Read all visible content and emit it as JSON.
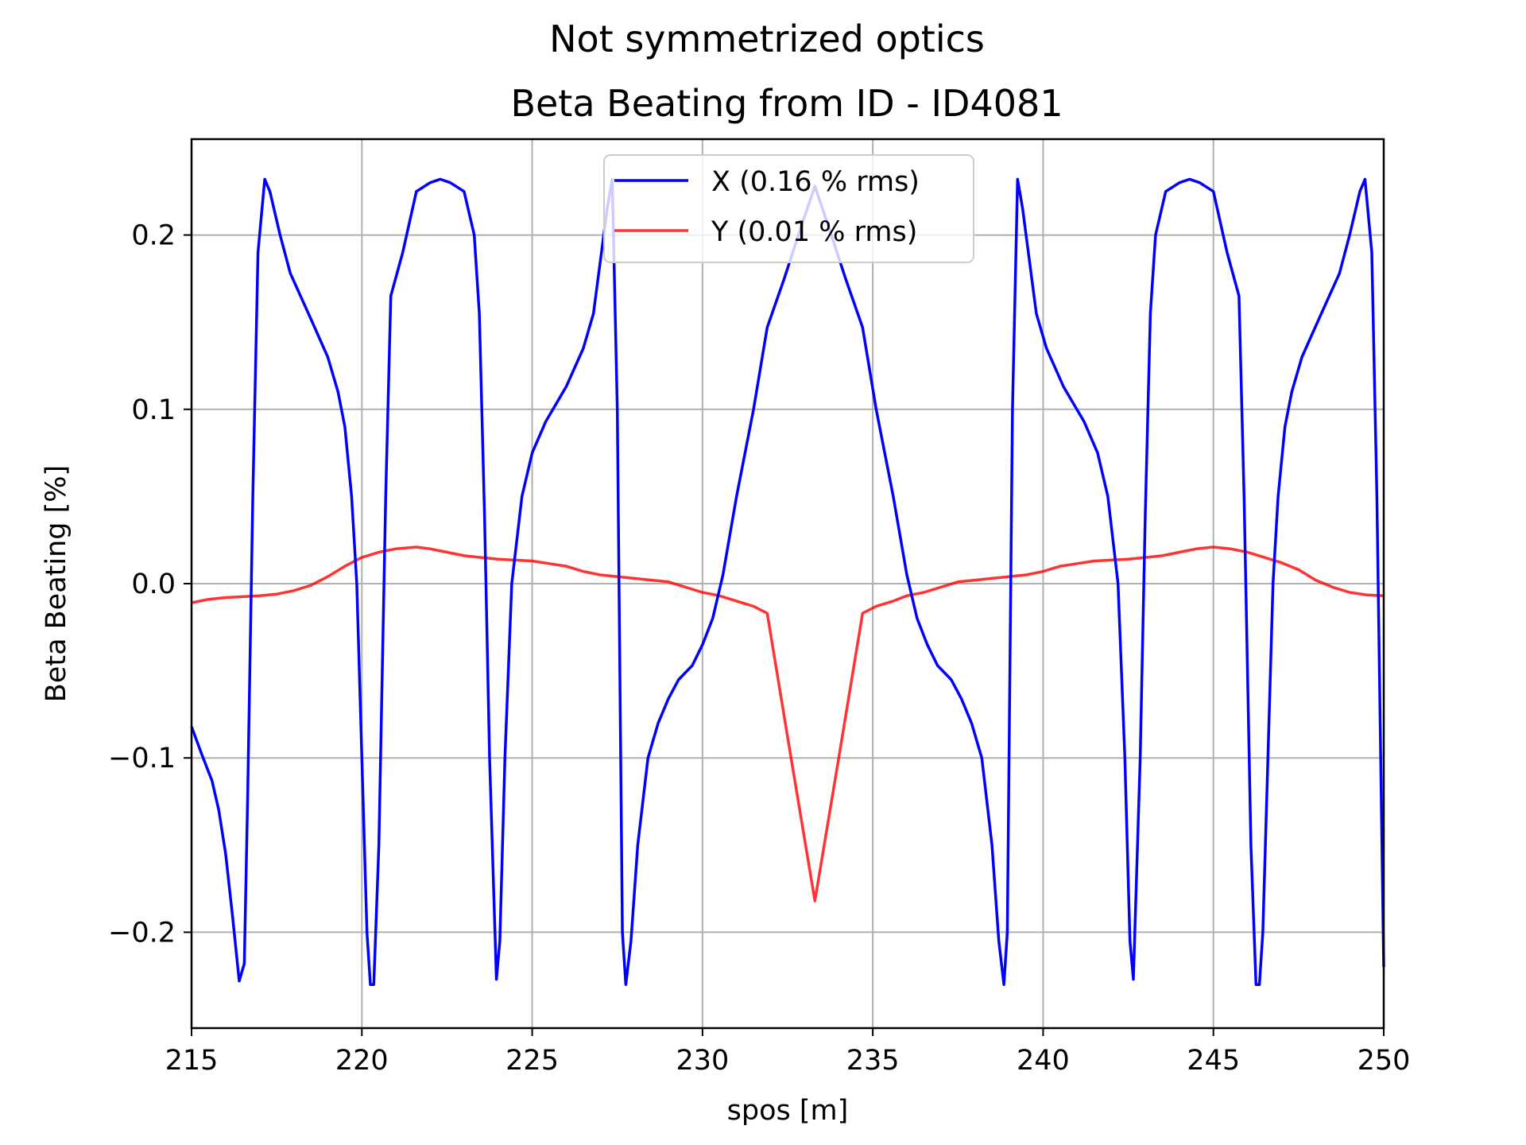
{
  "chart_data": {
    "type": "line",
    "suptitle": "Not symmetrized optics",
    "title": "Beta Beating from ID - ID4081",
    "xlabel": "spos [m]",
    "ylabel": "Beta Beating [%]",
    "xlim": [
      215,
      250
    ],
    "ylim": [
      -0.255,
      0.255
    ],
    "xticks": [
      215,
      220,
      225,
      230,
      235,
      240,
      245,
      250
    ],
    "xtick_labels": [
      "215",
      "220",
      "225",
      "230",
      "235",
      "240",
      "245",
      "250"
    ],
    "yticks": [
      -0.2,
      -0.1,
      0.0,
      0.1,
      0.2
    ],
    "ytick_labels": [
      "−0.2",
      "−0.1",
      "0.0",
      "0.1",
      "0.2"
    ],
    "grid": true,
    "legend_position": "top-center",
    "series": [
      {
        "name": "X (0.16 % rms)",
        "color": "#0000ff",
        "points": [
          [
            215.0,
            -0.082
          ],
          [
            215.3,
            -0.098
          ],
          [
            215.6,
            -0.113
          ],
          [
            215.8,
            -0.13
          ],
          [
            216.0,
            -0.155
          ],
          [
            216.2,
            -0.19
          ],
          [
            216.4,
            -0.228
          ],
          [
            216.55,
            -0.218
          ],
          [
            216.65,
            -0.12
          ],
          [
            216.8,
            0.05
          ],
          [
            216.95,
            0.19
          ],
          [
            217.15,
            0.232
          ],
          [
            217.3,
            0.225
          ],
          [
            217.6,
            0.2
          ],
          [
            217.9,
            0.178
          ],
          [
            218.5,
            0.152
          ],
          [
            219.0,
            0.13
          ],
          [
            219.3,
            0.11
          ],
          [
            219.5,
            0.09
          ],
          [
            219.7,
            0.05
          ],
          [
            219.85,
            0.0
          ],
          [
            220.0,
            -0.1
          ],
          [
            220.15,
            -0.2
          ],
          [
            220.25,
            -0.23
          ],
          [
            220.35,
            -0.23
          ],
          [
            220.5,
            -0.15
          ],
          [
            220.7,
            0.05
          ],
          [
            220.85,
            0.165
          ],
          [
            221.2,
            0.19
          ],
          [
            221.6,
            0.225
          ],
          [
            222.0,
            0.23
          ],
          [
            222.3,
            0.232
          ],
          [
            222.6,
            0.23
          ],
          [
            223.0,
            0.225
          ],
          [
            223.3,
            0.2
          ],
          [
            223.45,
            0.155
          ],
          [
            223.6,
            0.04
          ],
          [
            223.75,
            -0.1
          ],
          [
            223.95,
            -0.227
          ],
          [
            224.05,
            -0.205
          ],
          [
            224.2,
            -0.1
          ],
          [
            224.4,
            0.0
          ],
          [
            224.7,
            0.05
          ],
          [
            225.0,
            0.075
          ],
          [
            225.4,
            0.093
          ],
          [
            226.0,
            0.113
          ],
          [
            226.5,
            0.135
          ],
          [
            226.8,
            0.155
          ],
          [
            227.0,
            0.185
          ],
          [
            227.2,
            0.215
          ],
          [
            227.35,
            0.232
          ],
          [
            227.5,
            0.1
          ],
          [
            227.65,
            -0.2
          ],
          [
            227.75,
            -0.23
          ],
          [
            227.9,
            -0.205
          ],
          [
            228.1,
            -0.15
          ],
          [
            228.4,
            -0.1
          ],
          [
            228.7,
            -0.08
          ],
          [
            229.0,
            -0.066
          ],
          [
            229.3,
            -0.055
          ],
          [
            229.7,
            -0.047
          ],
          [
            230.0,
            -0.035
          ],
          [
            230.3,
            -0.02
          ],
          [
            230.6,
            0.005
          ],
          [
            231.0,
            0.05
          ],
          [
            231.5,
            0.1
          ],
          [
            231.9,
            0.147
          ],
          [
            232.4,
            0.175
          ],
          [
            232.9,
            0.205
          ],
          [
            233.3,
            0.228
          ],
          [
            233.7,
            0.205
          ],
          [
            234.2,
            0.175
          ],
          [
            234.7,
            0.147
          ],
          [
            235.1,
            0.1
          ],
          [
            235.6,
            0.05
          ],
          [
            236.0,
            0.005
          ],
          [
            236.3,
            -0.02
          ],
          [
            236.6,
            -0.035
          ],
          [
            236.9,
            -0.047
          ],
          [
            237.3,
            -0.055
          ],
          [
            237.6,
            -0.066
          ],
          [
            237.9,
            -0.08
          ],
          [
            238.2,
            -0.1
          ],
          [
            238.5,
            -0.15
          ],
          [
            238.7,
            -0.205
          ],
          [
            238.85,
            -0.23
          ],
          [
            238.95,
            -0.2
          ],
          [
            239.1,
            0.1
          ],
          [
            239.25,
            0.232
          ],
          [
            239.4,
            0.215
          ],
          [
            239.6,
            0.185
          ],
          [
            239.8,
            0.155
          ],
          [
            240.1,
            0.135
          ],
          [
            240.6,
            0.113
          ],
          [
            241.2,
            0.093
          ],
          [
            241.6,
            0.075
          ],
          [
            241.9,
            0.05
          ],
          [
            242.2,
            0.0
          ],
          [
            242.4,
            -0.1
          ],
          [
            242.55,
            -0.205
          ],
          [
            242.65,
            -0.227
          ],
          [
            242.85,
            -0.1
          ],
          [
            243.0,
            0.04
          ],
          [
            243.15,
            0.155
          ],
          [
            243.3,
            0.2
          ],
          [
            243.6,
            0.225
          ],
          [
            244.0,
            0.23
          ],
          [
            244.3,
            0.232
          ],
          [
            244.6,
            0.23
          ],
          [
            245.0,
            0.225
          ],
          [
            245.4,
            0.19
          ],
          [
            245.75,
            0.165
          ],
          [
            245.9,
            0.05
          ],
          [
            246.1,
            -0.15
          ],
          [
            246.25,
            -0.23
          ],
          [
            246.35,
            -0.23
          ],
          [
            246.45,
            -0.2
          ],
          [
            246.6,
            -0.1
          ],
          [
            246.75,
            0.0
          ],
          [
            246.9,
            0.05
          ],
          [
            247.1,
            0.09
          ],
          [
            247.3,
            0.11
          ],
          [
            247.6,
            0.13
          ],
          [
            248.1,
            0.152
          ],
          [
            248.7,
            0.178
          ],
          [
            249.0,
            0.2
          ],
          [
            249.3,
            0.225
          ],
          [
            249.45,
            0.232
          ],
          [
            249.65,
            0.19
          ],
          [
            249.8,
            0.05
          ],
          [
            250.0,
            -0.22
          ]
        ]
      },
      {
        "name": "Y (0.01 % rms)",
        "color": "#ff0000",
        "points": [
          [
            215.0,
            -0.011
          ],
          [
            215.5,
            -0.009
          ],
          [
            216.0,
            -0.008
          ],
          [
            216.5,
            -0.0075
          ],
          [
            217.0,
            -0.007
          ],
          [
            217.5,
            -0.006
          ],
          [
            218.0,
            -0.004
          ],
          [
            218.5,
            -0.001
          ],
          [
            219.0,
            0.004
          ],
          [
            219.5,
            0.01
          ],
          [
            220.0,
            0.015
          ],
          [
            220.5,
            0.018
          ],
          [
            221.0,
            0.02
          ],
          [
            221.6,
            0.021
          ],
          [
            222.0,
            0.02
          ],
          [
            222.5,
            0.018
          ],
          [
            223.0,
            0.016
          ],
          [
            223.5,
            0.015
          ],
          [
            224.0,
            0.014
          ],
          [
            224.5,
            0.0135
          ],
          [
            225.0,
            0.013
          ],
          [
            225.5,
            0.0115
          ],
          [
            226.0,
            0.01
          ],
          [
            226.5,
            0.007
          ],
          [
            227.0,
            0.005
          ],
          [
            227.5,
            0.004
          ],
          [
            228.0,
            0.003
          ],
          [
            228.5,
            0.002
          ],
          [
            229.0,
            0.001
          ],
          [
            229.5,
            -0.002
          ],
          [
            230.0,
            -0.005
          ],
          [
            230.5,
            -0.007
          ],
          [
            231.0,
            -0.01
          ],
          [
            231.5,
            -0.013
          ],
          [
            231.9,
            -0.017
          ],
          [
            232.6,
            -0.1
          ],
          [
            233.3,
            -0.182
          ],
          [
            234.0,
            -0.1
          ],
          [
            234.7,
            -0.017
          ],
          [
            235.1,
            -0.013
          ],
          [
            235.6,
            -0.01
          ],
          [
            236.0,
            -0.007
          ],
          [
            236.5,
            -0.005
          ],
          [
            237.0,
            -0.002
          ],
          [
            237.5,
            0.001
          ],
          [
            238.0,
            0.002
          ],
          [
            238.5,
            0.003
          ],
          [
            239.0,
            0.004
          ],
          [
            239.5,
            0.005
          ],
          [
            240.0,
            0.007
          ],
          [
            240.5,
            0.01
          ],
          [
            241.0,
            0.0115
          ],
          [
            241.5,
            0.013
          ],
          [
            242.0,
            0.0135
          ],
          [
            242.5,
            0.014
          ],
          [
            243.0,
            0.015
          ],
          [
            243.5,
            0.016
          ],
          [
            244.0,
            0.018
          ],
          [
            244.5,
            0.02
          ],
          [
            245.0,
            0.021
          ],
          [
            245.5,
            0.02
          ],
          [
            246.0,
            0.018
          ],
          [
            246.5,
            0.015
          ],
          [
            247.0,
            0.012
          ],
          [
            247.5,
            0.008
          ],
          [
            248.0,
            0.002
          ],
          [
            248.5,
            -0.002
          ],
          [
            249.0,
            -0.005
          ],
          [
            249.5,
            -0.0065
          ],
          [
            250.0,
            -0.007
          ]
        ]
      }
    ]
  }
}
